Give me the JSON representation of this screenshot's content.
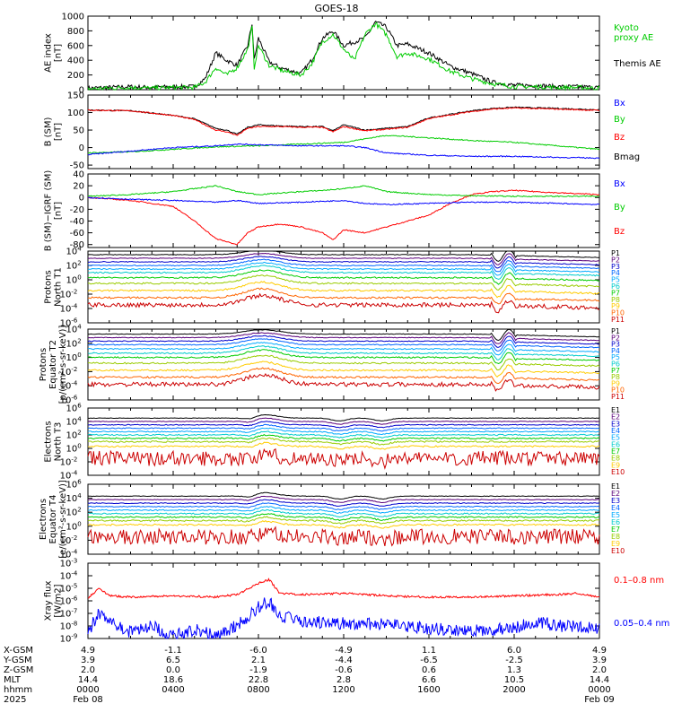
{
  "title": "GOES-18",
  "x_tick_labels": [
    "0000",
    "0400",
    "0800",
    "1200",
    "1600",
    "2000",
    "0000"
  ],
  "coords": {
    "labels": [
      "X-GSM",
      "Y-GSM",
      "Z-GSM",
      "MLT",
      "hhmm",
      "2025"
    ],
    "rows": [
      [
        "4.9",
        "-1.1",
        "-6.0",
        "-4.9",
        "1.1",
        "6.0",
        "4.9"
      ],
      [
        "3.9",
        "6.5",
        "2.1",
        "-4.4",
        "-6.5",
        "-2.5",
        "3.9"
      ],
      [
        "2.0",
        "0.0",
        "-1.9",
        "-0.6",
        "0.6",
        "1.3",
        "2.0"
      ],
      [
        "14.4",
        "18.6",
        "22.8",
        "2.8",
        "6.6",
        "10.5",
        "14.4"
      ],
      [
        "0000",
        "0400",
        "0800",
        "1200",
        "1600",
        "2000",
        "0000"
      ]
    ],
    "dates": [
      "Feb 08",
      "Feb 09"
    ]
  },
  "chart_data": [
    {
      "id": "ae",
      "type": "line",
      "ylabel": [
        "AE index",
        "[nT]"
      ],
      "ylim": [
        0,
        1000
      ],
      "yticks": [
        "1000",
        "800",
        "600",
        "400",
        "200",
        "0"
      ],
      "legend": [
        {
          "name": "Kyoto",
          "color": "#00cc00"
        },
        {
          "name": "proxy AE",
          "color": "#00cc00"
        },
        {
          "name": "Themis AE",
          "color": "#000000"
        }
      ],
      "series": [
        {
          "name": "Themis AE",
          "color": "#000000",
          "x": [
            0,
            1,
            2,
            3,
            4,
            5,
            5.5,
            6,
            6.5,
            7,
            7.5,
            7.7,
            7.8,
            8,
            8.5,
            9,
            9.5,
            10,
            10.5,
            11,
            11.5,
            12,
            12.5,
            13,
            13.5,
            14,
            14.5,
            15,
            16,
            17,
            18,
            19,
            20,
            21,
            22,
            23,
            24
          ],
          "values": [
            20,
            30,
            40,
            30,
            40,
            40,
            150,
            500,
            400,
            330,
            600,
            900,
            400,
            700,
            380,
            300,
            260,
            220,
            400,
            700,
            800,
            600,
            650,
            700,
            920,
            850,
            600,
            620,
            500,
            320,
            220,
            100,
            60,
            60,
            40,
            40,
            30
          ]
        },
        {
          "name": "Kyoto proxy AE",
          "color": "#00cc00",
          "x": [
            0,
            1,
            2,
            3,
            4,
            5,
            5.5,
            6,
            6.5,
            7,
            7.5,
            7.7,
            7.8,
            8,
            8.5,
            9,
            9.5,
            10,
            10.5,
            11,
            11.5,
            12,
            12.5,
            13,
            13.5,
            14,
            14.5,
            15,
            16,
            17,
            18,
            19,
            20,
            21,
            22,
            23,
            24
          ],
          "values": [
            10,
            20,
            30,
            20,
            30,
            30,
            100,
            300,
            200,
            300,
            550,
            850,
            300,
            600,
            330,
            270,
            230,
            200,
            350,
            650,
            750,
            550,
            400,
            750,
            900,
            750,
            450,
            500,
            420,
            250,
            150,
            80,
            40,
            40,
            30,
            30,
            20
          ]
        }
      ]
    },
    {
      "id": "bsm",
      "type": "line",
      "ylabel": [
        "B (SM)",
        "[nT]"
      ],
      "ylim": [
        -60,
        150
      ],
      "yticks": [
        "150",
        "100",
        "50",
        "0",
        "-50"
      ],
      "legend": [
        {
          "name": "Bx",
          "color": "#0000ff"
        },
        {
          "name": "By",
          "color": "#00cc00"
        },
        {
          "name": "Bz",
          "color": "#ff0000"
        },
        {
          "name": "Bmag",
          "color": "#000000"
        }
      ],
      "series": [
        {
          "name": "Bmag",
          "color": "#000000",
          "x": [
            0,
            2,
            4,
            5,
            6,
            6.5,
            7,
            7.5,
            8,
            9,
            10,
            11,
            11.5,
            12,
            13,
            14,
            15,
            16,
            17,
            18,
            19,
            20,
            22,
            24
          ],
          "values": [
            107,
            105,
            92,
            82,
            55,
            50,
            38,
            58,
            65,
            62,
            60,
            60,
            48,
            65,
            50,
            55,
            60,
            85,
            95,
            105,
            112,
            115,
            112,
            108
          ]
        },
        {
          "name": "Bz",
          "color": "#ff0000",
          "x": [
            0,
            2,
            4,
            5,
            6,
            6.5,
            7,
            7.5,
            8,
            9,
            10,
            11,
            11.5,
            12,
            13,
            14,
            15,
            16,
            17,
            18,
            19,
            20,
            22,
            24
          ],
          "values": [
            107,
            105,
            92,
            80,
            50,
            45,
            35,
            55,
            60,
            60,
            58,
            58,
            45,
            60,
            48,
            52,
            58,
            83,
            93,
            103,
            110,
            113,
            110,
            106
          ]
        },
        {
          "name": "By",
          "color": "#00cc00",
          "x": [
            0,
            2,
            4,
            6,
            8,
            10,
            12,
            13,
            14,
            16,
            18,
            20,
            22,
            24
          ],
          "values": [
            -15,
            -12,
            -5,
            2,
            5,
            10,
            15,
            25,
            35,
            28,
            20,
            15,
            5,
            -5
          ]
        },
        {
          "name": "Bx",
          "color": "#0000ff",
          "x": [
            0,
            2,
            4,
            6,
            7,
            8,
            10,
            12,
            13,
            14,
            16,
            18,
            20,
            22,
            24
          ],
          "values": [
            -20,
            -10,
            0,
            5,
            10,
            8,
            5,
            5,
            0,
            -15,
            -22,
            -25,
            -25,
            -28,
            -30
          ]
        }
      ]
    },
    {
      "id": "bdiff",
      "type": "line",
      "ylabel": [
        "B (SM)−IGRF (SM)",
        "[nT]"
      ],
      "ylim": [
        -85,
        40
      ],
      "yticks": [
        "40",
        "20",
        "0",
        "-20",
        "-40",
        "-60",
        "-80"
      ],
      "legend": [
        {
          "name": "Bx",
          "color": "#0000ff"
        },
        {
          "name": "By",
          "color": "#00cc00"
        },
        {
          "name": "Bz",
          "color": "#ff0000"
        }
      ],
      "series": [
        {
          "name": "Bz",
          "color": "#ff0000",
          "x": [
            0,
            2,
            4,
            5,
            6,
            7,
            7.5,
            8,
            9,
            10,
            11,
            11.5,
            12,
            13,
            14,
            15,
            16,
            17,
            18,
            19,
            20,
            22,
            24
          ],
          "values": [
            0,
            -5,
            -15,
            -40,
            -70,
            -80,
            -60,
            -50,
            -45,
            -50,
            -60,
            -72,
            -55,
            -60,
            -50,
            -40,
            -30,
            -10,
            5,
            10,
            12,
            8,
            5
          ]
        },
        {
          "name": "By",
          "color": "#00cc00",
          "x": [
            0,
            2,
            4,
            5,
            6,
            7,
            8,
            10,
            11,
            12,
            13,
            14,
            16,
            18,
            20,
            22,
            24
          ],
          "values": [
            2,
            5,
            10,
            15,
            20,
            10,
            5,
            10,
            12,
            15,
            20,
            10,
            5,
            3,
            2,
            2,
            2
          ]
        },
        {
          "name": "Bx",
          "color": "#0000ff",
          "x": [
            0,
            2,
            4,
            6,
            7,
            8,
            10,
            12,
            13,
            14,
            16,
            18,
            20,
            22,
            24
          ],
          "values": [
            0,
            -3,
            -5,
            -8,
            -5,
            -10,
            -8,
            -5,
            -10,
            -12,
            -10,
            -8,
            -8,
            -10,
            -12
          ]
        }
      ]
    },
    {
      "id": "p_t1",
      "type": "line",
      "log": true,
      "ylabel": [
        "Protons",
        "North T1"
      ],
      "ylim_exp": [
        -6,
        4
      ],
      "tick_exps": [
        4,
        2,
        0,
        -2,
        -4,
        -6
      ],
      "labels": [
        "P1",
        "P2",
        "P3",
        "P4",
        "P5",
        "P6",
        "P7",
        "P8",
        "P9",
        "P10",
        "P11"
      ],
      "colors": [
        "#000000",
        "#5a007a",
        "#0000cc",
        "#0066ff",
        "#00aaff",
        "#00cccc",
        "#00cc00",
        "#99cc00",
        "#ffcc00",
        "#ff6600",
        "#cc0000"
      ],
      "base_exps": [
        3.5,
        3.0,
        2.5,
        2.0,
        1.5,
        1.0,
        0.3,
        -0.5,
        -1.5,
        -2.5,
        -3.5
      ]
    },
    {
      "id": "p_t2",
      "type": "line",
      "log": true,
      "ylabel": [
        "Protons",
        "Equator T2",
        "[p/(cm²-s-sr-keV)]"
      ],
      "ylim_exp": [
        -6,
        4
      ],
      "tick_exps": [
        4,
        2,
        0,
        -2,
        -4,
        -6
      ],
      "labels": [
        "P1",
        "P2",
        "P3",
        "P4",
        "P5",
        "P6",
        "P7",
        "P8",
        "P9",
        "P10",
        "P11"
      ],
      "colors": [
        "#000000",
        "#5a007a",
        "#0000cc",
        "#0066ff",
        "#00aaff",
        "#00cccc",
        "#00cc00",
        "#99cc00",
        "#ffcc00",
        "#ff6600",
        "#cc0000"
      ],
      "base_exps": [
        3.3,
        2.8,
        2.3,
        1.8,
        1.2,
        0.6,
        0.0,
        -0.8,
        -1.8,
        -2.8,
        -3.8
      ]
    },
    {
      "id": "e_t3",
      "type": "line",
      "log": true,
      "ylabel": [
        "Electrons",
        "North T3"
      ],
      "ylim_exp": [
        -4,
        6
      ],
      "tick_exps": [
        6,
        4,
        2,
        0,
        -2,
        -4
      ],
      "labels": [
        "E1",
        "E2",
        "E3",
        "E4",
        "E5",
        "E6",
        "E7",
        "E8",
        "E9",
        "E10"
      ],
      "colors": [
        "#000000",
        "#5a007a",
        "#0000cc",
        "#0066ff",
        "#00aaff",
        "#00cccc",
        "#00cc00",
        "#99cc00",
        "#ffcc00",
        "#cc0000"
      ],
      "base_exps": [
        4.5,
        4.0,
        3.5,
        3.0,
        2.5,
        2.0,
        1.5,
        1.0,
        0.3,
        -1.5
      ]
    },
    {
      "id": "e_t4",
      "type": "line",
      "log": true,
      "ylabel": [
        "Electrons",
        "Equator T4",
        "[e/(cm²-s-sr-keV)]"
      ],
      "ylim_exp": [
        -4,
        6
      ],
      "tick_exps": [
        6,
        4,
        2,
        0,
        -2,
        -4
      ],
      "labels": [
        "E1",
        "E2",
        "E3",
        "E4",
        "E5",
        "E6",
        "E7",
        "E8",
        "E9",
        "E10"
      ],
      "colors": [
        "#000000",
        "#5a007a",
        "#0000cc",
        "#0066ff",
        "#00aaff",
        "#00cccc",
        "#00cc00",
        "#99cc00",
        "#ffcc00",
        "#cc0000"
      ],
      "base_exps": [
        4.3,
        3.8,
        3.3,
        2.8,
        2.3,
        1.8,
        1.3,
        0.8,
        0.2,
        -1.5
      ]
    },
    {
      "id": "xray",
      "type": "line",
      "log": true,
      "ylabel": [
        "Xray flux",
        "[W/m2]"
      ],
      "ylim_exp": [
        -9,
        -3
      ],
      "tick_exps": [
        -3,
        -4,
        -5,
        -6,
        -7,
        -8,
        -9
      ],
      "legend": [
        {
          "name": "0.1–0.8 nm",
          "color": "#ff0000"
        },
        {
          "name": "0.05–0.4 nm",
          "color": "#0000ff"
        }
      ],
      "series": [
        {
          "name": "0.1–0.8 nm",
          "color": "#ff0000",
          "x": [
            0,
            0.5,
            1,
            2,
            4,
            6,
            7,
            8,
            8.5,
            9,
            10,
            12,
            14,
            16,
            18,
            20,
            22,
            23,
            24
          ],
          "values": [
            -5.8,
            -5.0,
            -5.6,
            -5.7,
            -5.6,
            -5.7,
            -5.5,
            -4.6,
            -4.3,
            -5.4,
            -5.5,
            -5.4,
            -5.6,
            -5.7,
            -5.7,
            -5.6,
            -5.5,
            -5.4,
            -5.7
          ]
        },
        {
          "name": "0.05–0.4 nm",
          "color": "#0000ff",
          "x": [
            0,
            0.5,
            1,
            2,
            3,
            4,
            5,
            6,
            7,
            8,
            8.5,
            9,
            10,
            12,
            14,
            16,
            18,
            20,
            21,
            22,
            23,
            24
          ],
          "values": [
            -8.5,
            -7.0,
            -7.6,
            -8.5,
            -8.0,
            -8.8,
            -8.3,
            -8.7,
            -8.0,
            -6.5,
            -6.0,
            -7.2,
            -7.6,
            -7.8,
            -7.9,
            -8.2,
            -8.4,
            -8.2,
            -7.6,
            -8.0,
            -8.0,
            -8.3
          ]
        }
      ]
    }
  ]
}
